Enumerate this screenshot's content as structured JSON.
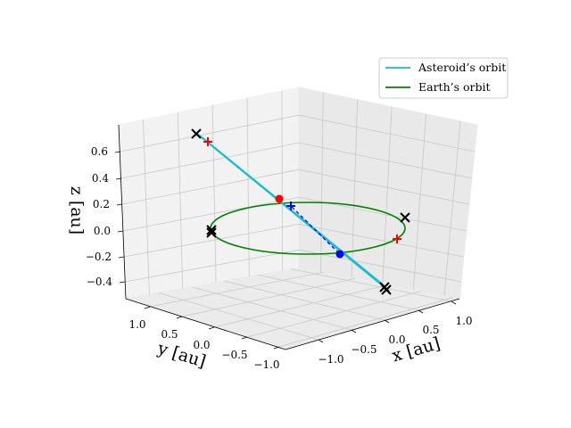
{
  "chart_data": {
    "type": "line3d",
    "xlabel": "x [au]",
    "ylabel": "y [au]",
    "zlabel": "z [au]",
    "xlim": [
      -1.2,
      1.2
    ],
    "ylim": [
      -1.2,
      1.4
    ],
    "zlim": [
      -0.5,
      0.75
    ],
    "x_ticks": [
      "−1.0",
      "−0.5",
      "0.0",
      "0.5",
      "1.0"
    ],
    "y_ticks": [
      "−1.0",
      "−0.5",
      "0.0",
      "0.5",
      "1.0"
    ],
    "z_ticks": [
      "−0.4",
      "−0.2",
      "0.0",
      "0.2",
      "0.4",
      "0.6"
    ],
    "grid": true,
    "legend_position": "top-right",
    "series": [
      {
        "name": "Asteroid’s orbit",
        "color": "#17becf",
        "style": "line",
        "points": [
          [
            -1.1,
            1.2,
            0.6
          ],
          [
            -0.3,
            0.3,
            0.15
          ],
          [
            0.4,
            -0.4,
            -0.2
          ],
          [
            1.1,
            -1.2,
            -0.55
          ]
        ]
      },
      {
        "name": "Earth’s orbit",
        "color": "#008000",
        "style": "ellipse",
        "center": [
          0,
          0,
          0
        ],
        "radius": 1.0
      }
    ],
    "markers": [
      {
        "symbol": "x",
        "color": "#000000",
        "position": [
          -1.1,
          1.2,
          0.62
        ]
      },
      {
        "symbol": "+",
        "color": "#ff0000",
        "position": [
          -1.0,
          1.05,
          0.57
        ]
      },
      {
        "symbol": "circle",
        "color": "#ff0000",
        "position": [
          -0.2,
          0.3,
          0.25
        ]
      },
      {
        "symbol": "+",
        "color": "#0000ff",
        "position": [
          -0.05,
          0.1,
          0.12
        ]
      },
      {
        "symbol": "circle",
        "color": "#0000ff",
        "position": [
          0.5,
          -0.4,
          -0.1
        ]
      },
      {
        "symbol": "x",
        "color": "#000000",
        "position": [
          -1.0,
          0.1,
          0.0
        ]
      },
      {
        "symbol": "x",
        "color": "#000000",
        "position": [
          0.8,
          0.6,
          0.0
        ]
      },
      {
        "symbol": "+",
        "color": "#ff0000",
        "position": [
          0.95,
          -0.2,
          0.0
        ]
      },
      {
        "symbol": "x",
        "color": "#000000",
        "position": [
          1.1,
          -1.2,
          -0.45
        ]
      }
    ]
  }
}
